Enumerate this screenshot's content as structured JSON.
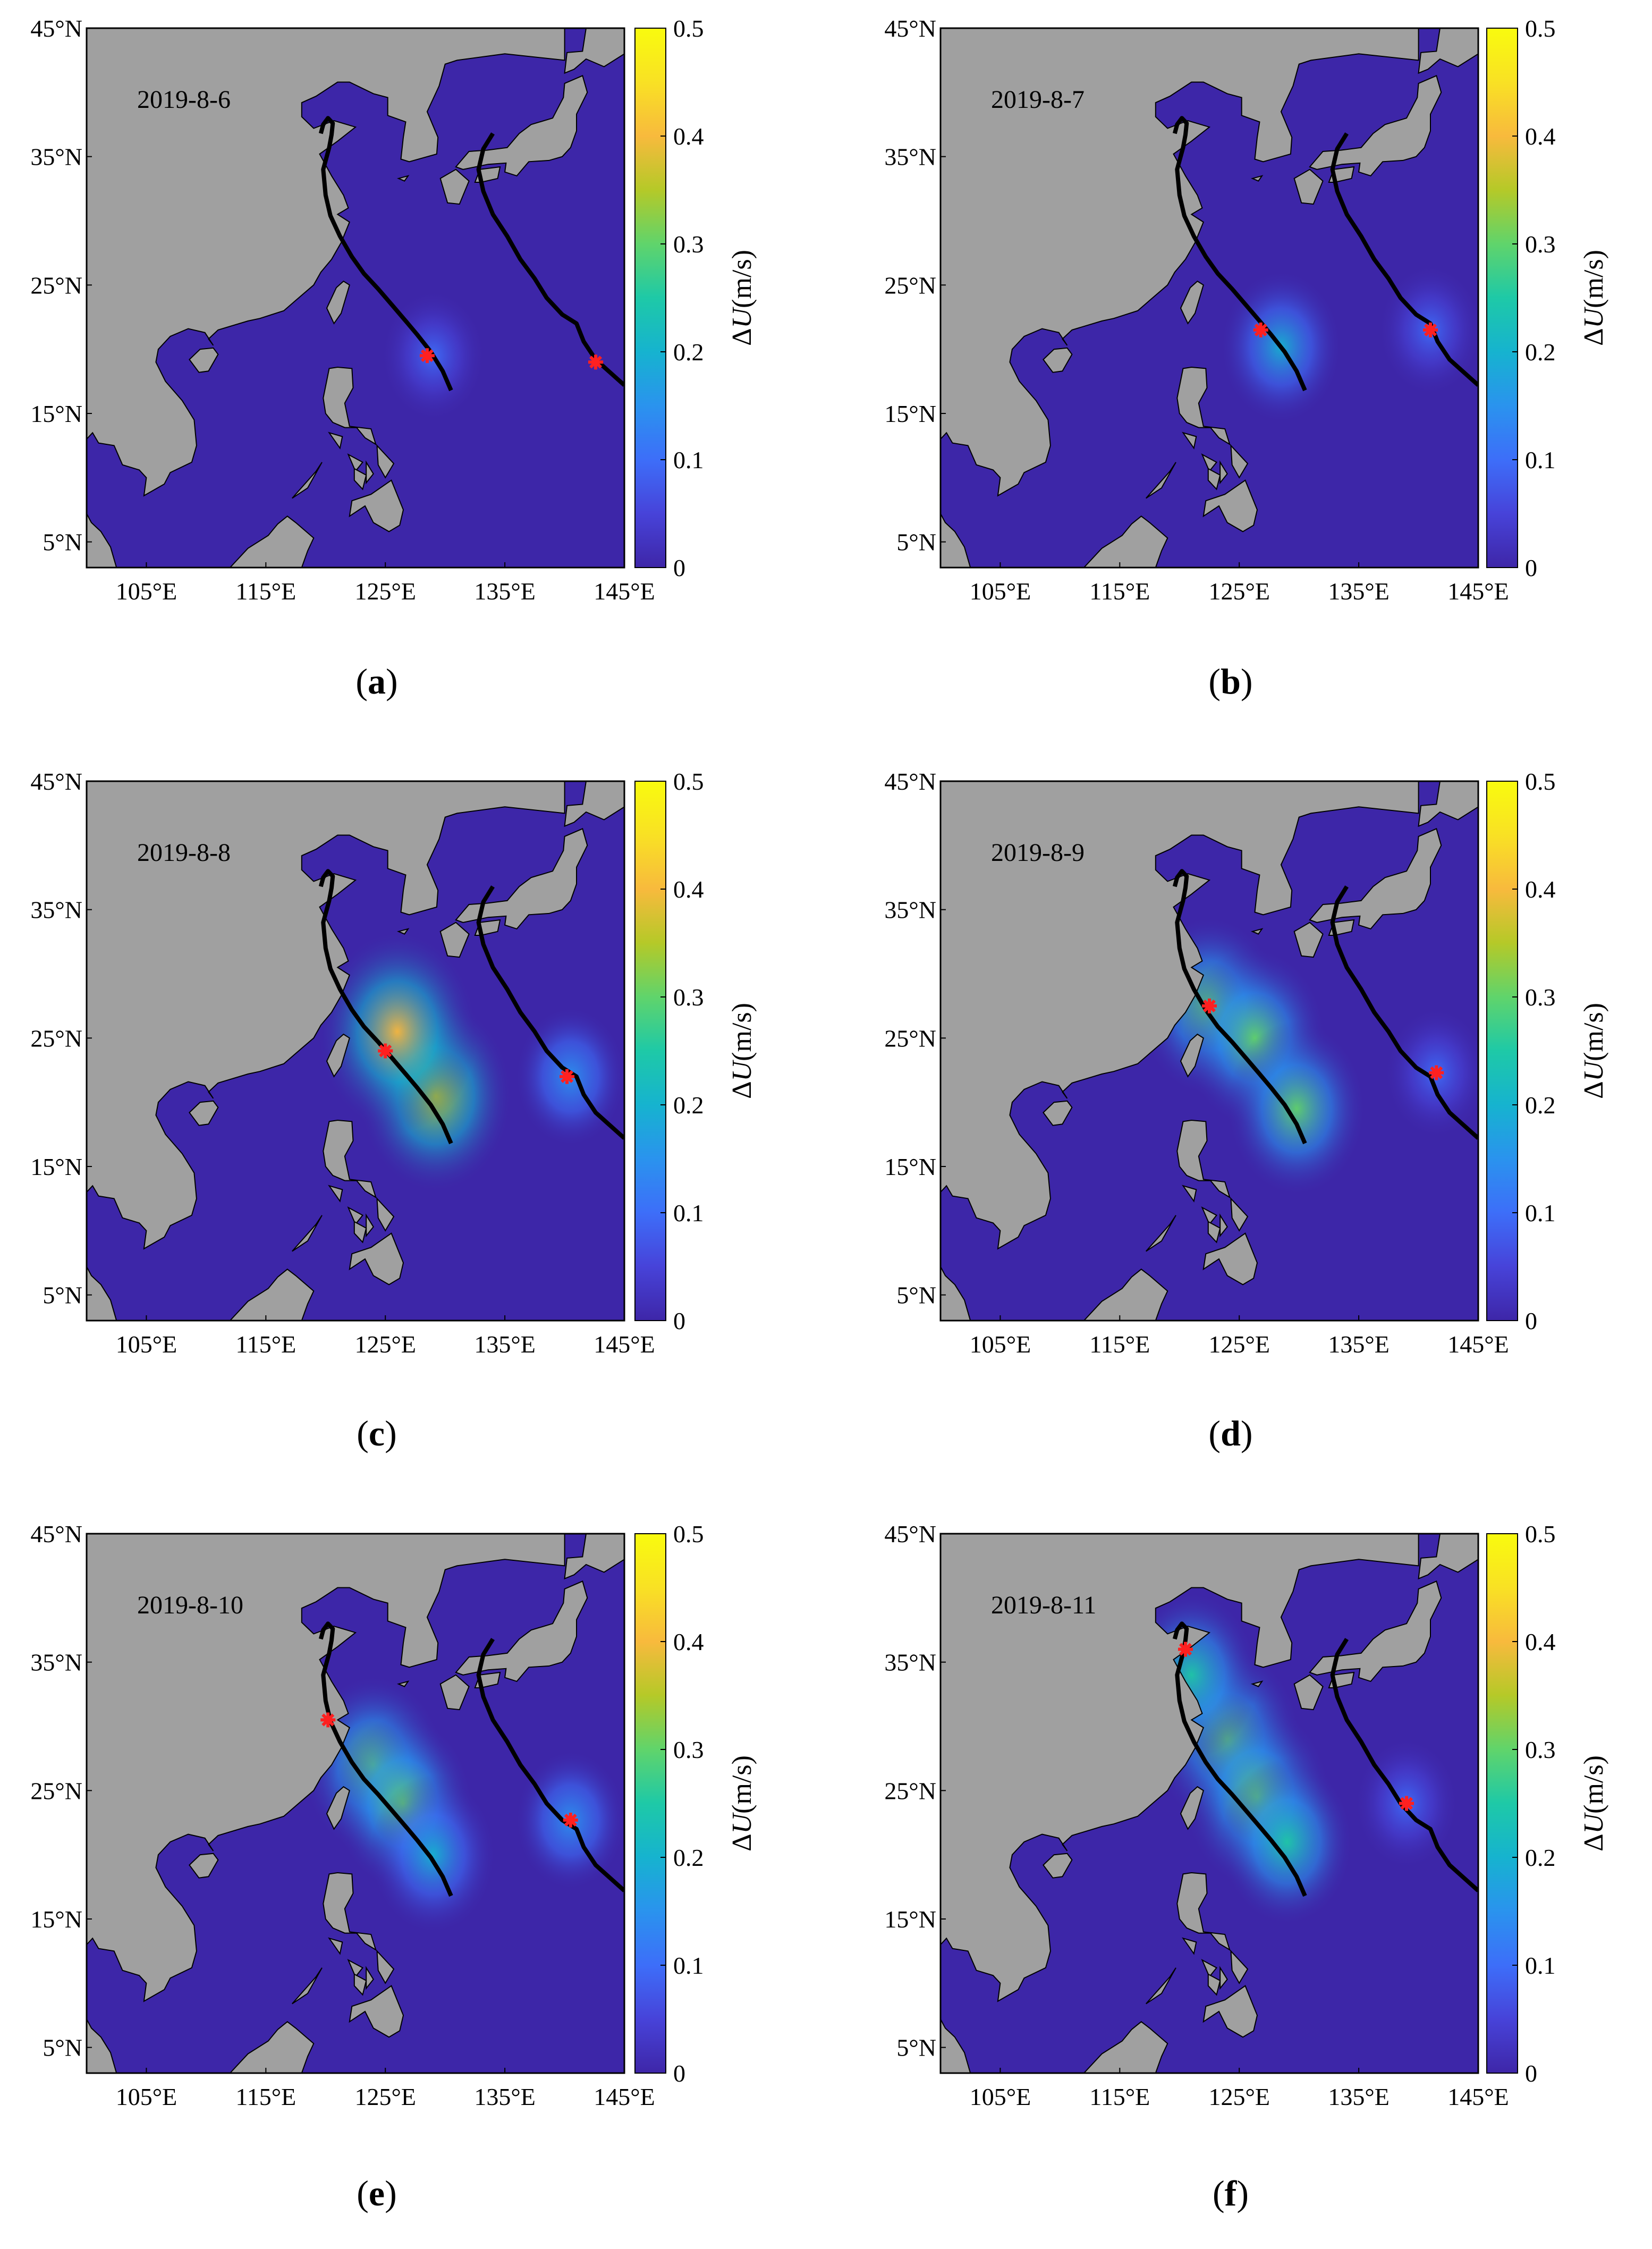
{
  "figure": {
    "colors": {
      "ocean": "#3d26a8",
      "land": "#a0a0a0",
      "track": "#000000",
      "marker": "#ff2020",
      "colormap": [
        "#3e26a8",
        "#4743d9",
        "#3d6ef9",
        "#2a93ee",
        "#16b3cf",
        "#1ec9a7",
        "#60d46b",
        "#b5c928",
        "#f8ba3d",
        "#f9e124",
        "#f9fb0e"
      ]
    },
    "axes": {
      "x_ticks": [
        "105°E",
        "115°E",
        "125°E",
        "135°E",
        "145°E"
      ],
      "y_ticks": [
        "45°N",
        "35°N",
        "25°N",
        "15°N",
        "5°N"
      ],
      "x_tick_values": [
        105,
        115,
        125,
        135,
        145
      ],
      "y_tick_values": [
        45,
        35,
        25,
        15,
        5
      ],
      "lon_range": [
        100,
        145
      ],
      "lat_range": [
        3,
        45
      ]
    },
    "colorbar": {
      "label_prefix": "Δ",
      "label_var": "U",
      "label_unit": "(m/s)",
      "ticks": [
        "0.5",
        "0.4",
        "0.3",
        "0.2",
        "0.1",
        "0"
      ],
      "tick_values": [
        0.5,
        0.4,
        0.3,
        0.2,
        0.1,
        0
      ],
      "range": [
        0,
        0.5
      ]
    },
    "panels": [
      {
        "id": "a",
        "date": "2019-8-6",
        "caption": "a",
        "markers": [
          [
            128.5,
            19.5
          ],
          [
            142.6,
            19.0
          ]
        ],
        "hot": [
          [
            129,
            19.5,
            0.12
          ]
        ]
      },
      {
        "id": "b",
        "date": "2019-8-7",
        "caption": "b",
        "markers": [
          [
            126.8,
            21.5
          ],
          [
            141.0,
            21.5
          ]
        ],
        "hot": [
          [
            128.5,
            20.2,
            0.2
          ],
          [
            141,
            21.5,
            0.12
          ]
        ]
      },
      {
        "id": "c",
        "date": "2019-8-8",
        "caption": "c",
        "markers": [
          [
            125.0,
            24.0
          ],
          [
            140.2,
            22.0
          ]
        ],
        "hot": [
          [
            129.2,
            20.5,
            0.35
          ],
          [
            126,
            25.5,
            0.38
          ],
          [
            140.5,
            22,
            0.15
          ]
        ]
      },
      {
        "id": "d",
        "date": "2019-8-9",
        "caption": "d",
        "markers": [
          [
            122.5,
            27.5
          ],
          [
            141.5,
            22.3
          ]
        ],
        "hot": [
          [
            122.5,
            27.5,
            0.3
          ],
          [
            126.3,
            25.0,
            0.3
          ],
          [
            129.8,
            19.5,
            0.28
          ],
          [
            141.5,
            22.3,
            0.12
          ]
        ]
      },
      {
        "id": "e",
        "date": "2019-8-10",
        "caption": "e",
        "markers": [
          [
            120.2,
            30.5
          ],
          [
            140.5,
            22.7
          ]
        ],
        "hot": [
          [
            124,
            27,
            0.3
          ],
          [
            126.5,
            24,
            0.28
          ],
          [
            129,
            20,
            0.22
          ],
          [
            140.5,
            22.7,
            0.15
          ]
        ]
      },
      {
        "id": "f",
        "date": "2019-8-11",
        "caption": "f",
        "markers": [
          [
            120.5,
            36.0
          ],
          [
            139.0,
            24.0
          ]
        ],
        "hot": [
          [
            124,
            29,
            0.32
          ],
          [
            126.5,
            24.5,
            0.32
          ],
          [
            129,
            21,
            0.25
          ],
          [
            121,
            34,
            0.25
          ],
          [
            139,
            24,
            0.12
          ]
        ]
      }
    ]
  }
}
